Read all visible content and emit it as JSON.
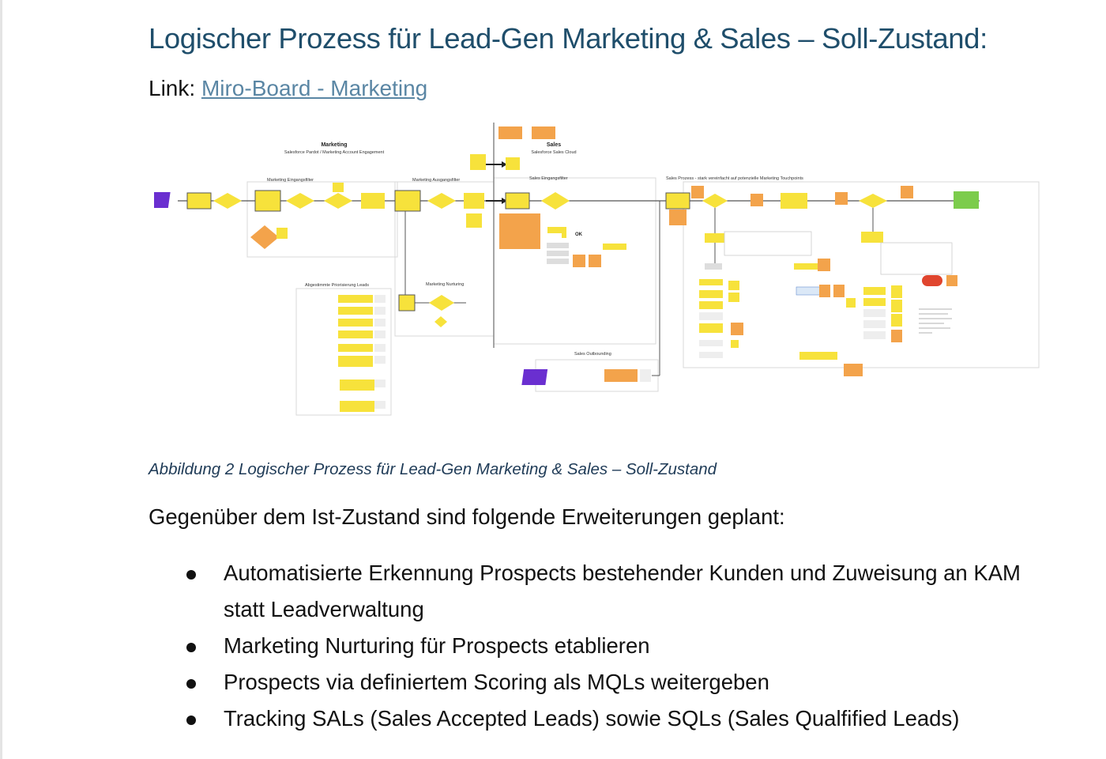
{
  "heading": "Logischer Prozess für Lead-Gen Marketing & Sales – Soll-Zustand:",
  "link": {
    "prefix": "Link: ",
    "text": "Miro-Board - Marketing"
  },
  "figure": {
    "marketing_title": "Marketing",
    "marketing_subtitle": "Salesforce Pardot / Marketing Account Engagement",
    "sales_title": "Sales",
    "sales_subtitle": "Salesforce Sales Cloud",
    "eingangsfilter": "Marketing Eingangsfilter",
    "ausgangsfilter": "Marketing Ausgangsfilter",
    "sales_eingangsfilter": "Sales Eingangsfilter",
    "sales_prozess": "Sales Prozess - stark vereinfacht auf potenzielle Marketing Touchpoints",
    "priorisierung": "Abgestimmte Priorisierung Leads",
    "nurturing": "Marketing Nurturing",
    "outbounding": "Sales Outbounding",
    "ok_label": "OK"
  },
  "caption": "Abbildung 2 Logischer Prozess für Lead-Gen Marketing & Sales – Soll-Zustand",
  "intro": "Gegenüber dem Ist-Zustand sind folgende Erweiterungen geplant:",
  "bullets": [
    "Automatisierte Erkennung Prospects bestehender Kunden und Zuweisung an KAM statt Leadverwaltung",
    "Marketing Nurturing für Prospects etablieren",
    "Prospects via definiertem Scoring als MQLs weitergeben",
    "Tracking SALs (Sales Accepted Leads) sowie SQLs (Sales Qualfified Leads)"
  ],
  "colors": {
    "heading": "#1f4e6b",
    "link": "#5a86a4",
    "caption": "#1f3b57",
    "sticky_yellow": "#f7e23b",
    "sticky_orange": "#f3a34b",
    "sticky_purple": "#6a2fd0",
    "sticky_green": "#7ccc4c",
    "sticky_red": "#e0452e"
  }
}
